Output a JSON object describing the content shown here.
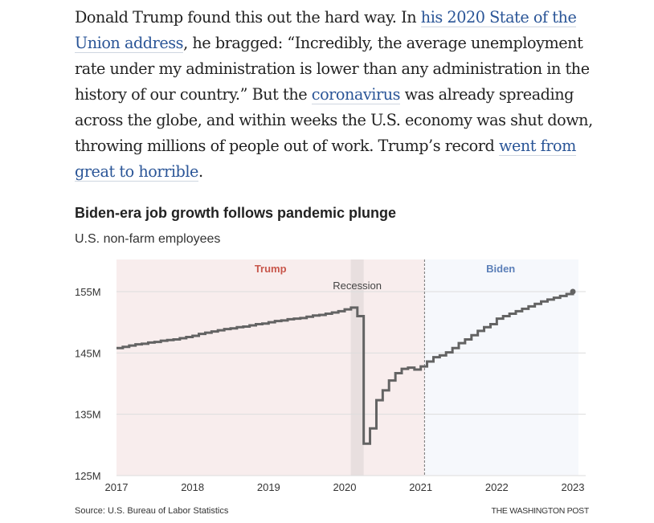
{
  "article": {
    "paragraph": [
      {
        "text": "Donald Trump found this out the hard way. In ",
        "link": false
      },
      {
        "text": "his 2020 State of the Union address",
        "link": true
      },
      {
        "text": ", he bragged: “Incredibly, the average unemployment rate under my administration is lower than any administration in the history of our country.” But the ",
        "link": false
      },
      {
        "text": "coronavirus",
        "link": true
      },
      {
        "text": " was already spreading across the globe, and within weeks the U.S. economy was shut down, throwing millions of people out of work. Trump’s record ",
        "link": false
      },
      {
        "text": "went from great to horrible",
        "link": true
      },
      {
        "text": ".",
        "link": false
      }
    ]
  },
  "chart": {
    "title": "Biden-era job growth follows pandemic plunge",
    "subtitle": "U.S. non-farm employees",
    "source": "Source: U.S. Bureau of Labor Statistics",
    "credit": "THE WASHINGTON POST"
  },
  "colors": {
    "trump_bg": "#f8eded",
    "trump_label": "#c8564b",
    "biden_bg": "#f6f8fc",
    "biden_label": "#5b7fb8",
    "recession_band": "#e8dfdf",
    "line": "#636363",
    "grid": "#dddddd"
  },
  "chart_data": {
    "type": "line",
    "title": "Biden-era job growth follows pandemic plunge",
    "subtitle": "U.S. non-farm employees",
    "xlabel": "",
    "ylabel": "",
    "step": true,
    "xlim": [
      2017.0,
      2023.0
    ],
    "ylim": [
      125,
      158
    ],
    "x_ticks": [
      2017,
      2018,
      2019,
      2020,
      2021,
      2022,
      2023
    ],
    "x_tick_labels": [
      "2017",
      "2018",
      "2019",
      "2020",
      "2021",
      "2022",
      "2023"
    ],
    "y_ticks": [
      125,
      135,
      145,
      155
    ],
    "y_tick_labels": [
      "125M",
      "135M",
      "145M",
      "155M"
    ],
    "grid": true,
    "regions": [
      {
        "name": "Trump",
        "start": 2017.0,
        "end": 2021.05
      },
      {
        "name": "Biden",
        "start": 2021.05,
        "end": 2023.0
      }
    ],
    "annotations": [
      {
        "text": "Recession",
        "start": 2020.08,
        "end": 2020.25
      }
    ],
    "series": [
      {
        "name": "Non-farm employees (millions)",
        "x": [
          2017.0,
          2017.083,
          2017.167,
          2017.25,
          2017.333,
          2017.417,
          2017.5,
          2017.583,
          2017.667,
          2017.75,
          2017.833,
          2017.917,
          2018.0,
          2018.083,
          2018.167,
          2018.25,
          2018.333,
          2018.417,
          2018.5,
          2018.583,
          2018.667,
          2018.75,
          2018.833,
          2018.917,
          2019.0,
          2019.083,
          2019.167,
          2019.25,
          2019.333,
          2019.417,
          2019.5,
          2019.583,
          2019.667,
          2019.75,
          2019.833,
          2019.917,
          2020.0,
          2020.083,
          2020.167,
          2020.25,
          2020.333,
          2020.417,
          2020.5,
          2020.583,
          2020.667,
          2020.75,
          2020.833,
          2020.917,
          2021.0,
          2021.083,
          2021.167,
          2021.25,
          2021.333,
          2021.417,
          2021.5,
          2021.583,
          2021.667,
          2021.75,
          2021.833,
          2021.917,
          2022.0,
          2022.083,
          2022.167,
          2022.25,
          2022.333,
          2022.417,
          2022.5,
          2022.583,
          2022.667,
          2022.75,
          2022.833,
          2022.917,
          2023.0
        ],
        "values": [
          145.8,
          146.0,
          146.2,
          146.4,
          146.5,
          146.7,
          146.8,
          147.0,
          147.1,
          147.2,
          147.4,
          147.6,
          147.8,
          148.1,
          148.3,
          148.5,
          148.7,
          148.9,
          149.0,
          149.2,
          149.3,
          149.5,
          149.7,
          149.8,
          150.0,
          150.2,
          150.3,
          150.5,
          150.6,
          150.7,
          150.9,
          151.1,
          151.2,
          151.4,
          151.6,
          151.8,
          152.1,
          152.4,
          151.0,
          130.2,
          132.7,
          137.3,
          138.9,
          140.5,
          141.7,
          142.4,
          142.6,
          142.3,
          142.8,
          143.6,
          144.3,
          144.6,
          145.1,
          145.8,
          146.6,
          147.2,
          147.9,
          148.6,
          149.2,
          149.7,
          150.6,
          151.0,
          151.4,
          151.8,
          152.2,
          152.6,
          153.0,
          153.4,
          153.7,
          154.0,
          154.3,
          154.6,
          155.0
        ]
      }
    ]
  }
}
